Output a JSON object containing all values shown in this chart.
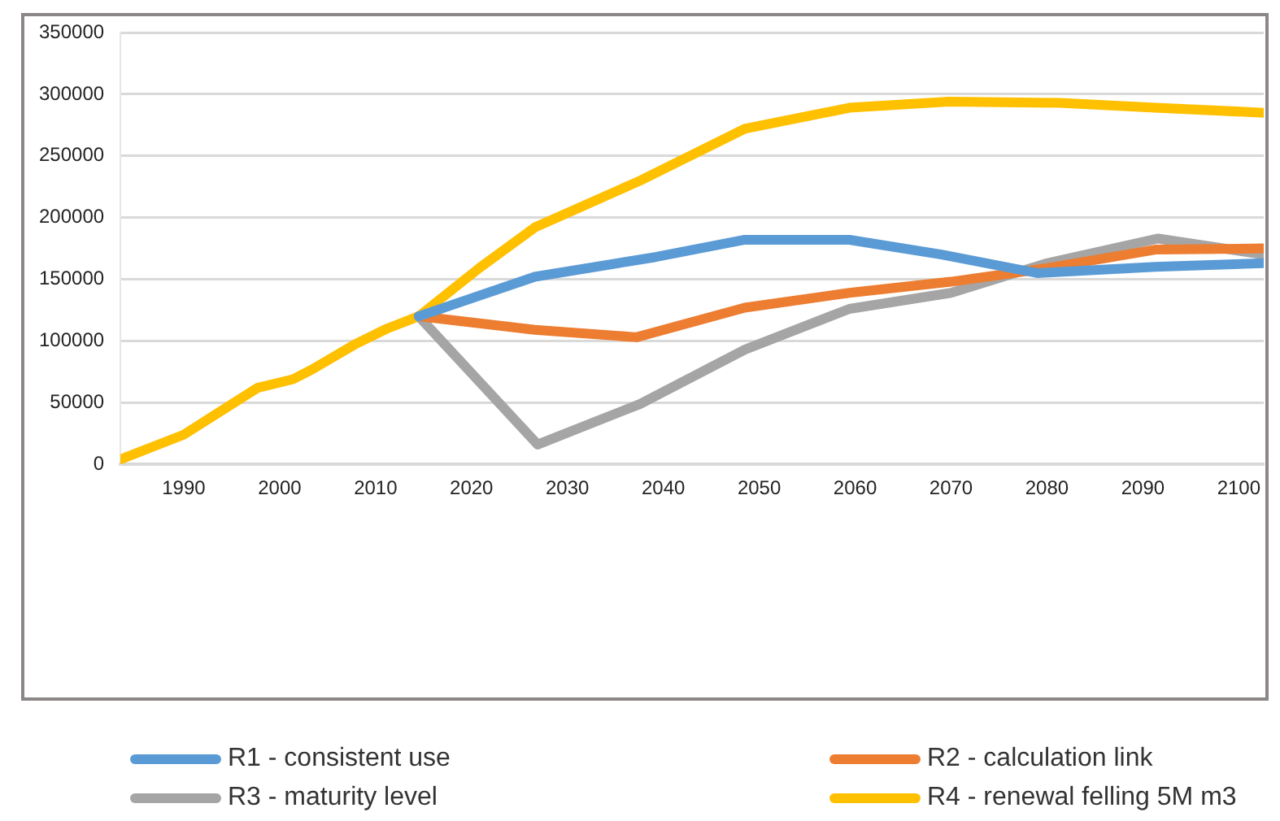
{
  "chart_data": {
    "type": "line",
    "xlim": [
      1983.4,
      2102.6
    ],
    "xticks": [
      1990,
      2000,
      2010,
      2020,
      2030,
      2040,
      2050,
      2060,
      2070,
      2080,
      2090,
      2100
    ],
    "ylim": [
      0,
      350000
    ],
    "yticks": [
      0,
      50000,
      100000,
      150000,
      200000,
      250000,
      300000,
      350000
    ],
    "grid": "y",
    "legend": "bottom",
    "marker": "none",
    "line_style": "solid",
    "series": [
      {
        "name": "R1 - consistent use",
        "color": "#5b9bd5",
        "x": [
          2014.5,
          2026.6,
          2039.2,
          2048.5,
          2059.4,
          2069,
          2079,
          2091.3,
          2102.6
        ],
        "values": [
          120000,
          152000,
          168000,
          182000,
          182000,
          170000,
          155000,
          160000,
          163000
        ]
      },
      {
        "name": "R2 - calculation link",
        "color": "#ed7d31",
        "x": [
          2014.5,
          2026.6,
          2037.2,
          2048.5,
          2059.4,
          2070,
          2080,
          2091.3,
          2102.6
        ],
        "values": [
          120000,
          109000,
          103000,
          127000,
          139000,
          148000,
          159000,
          174000,
          175000
        ]
      },
      {
        "name": "R3 - maturity level",
        "color": "#a5a5a5",
        "x": [
          2014.5,
          2026.9,
          2037.6,
          2048.5,
          2059.4,
          2070,
          2080,
          2091.6,
          2102.6
        ],
        "values": [
          120000,
          16000,
          49000,
          93000,
          126000,
          139000,
          163000,
          183000,
          170000
        ]
      },
      {
        "name": "R4 - renewal felling 5M m3",
        "color": "#ffc000",
        "x": [
          1983.4,
          1990,
          1997.7,
          2001.4,
          2003.4,
          2007.8,
          2011.2,
          2014.5,
          2020.8,
          2026.6,
          2037.6,
          2048.5,
          2059.4,
          2069.8,
          2081.3,
          2091.3,
          2102.6
        ],
        "values": [
          4000,
          24000,
          62000,
          69000,
          77000,
          97000,
          110000,
          120000,
          159000,
          192000,
          230000,
          272000,
          289000,
          294000,
          293000,
          289000,
          285000
        ]
      }
    ]
  }
}
